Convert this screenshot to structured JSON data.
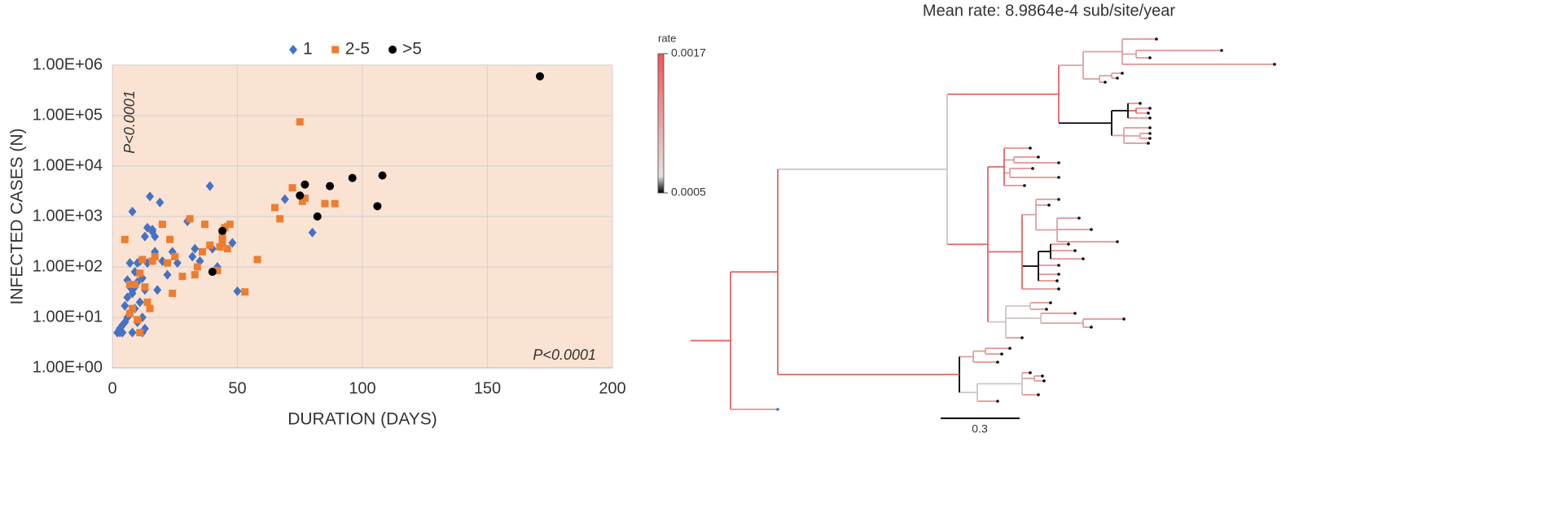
{
  "chart_data": [
    {
      "type": "scatter",
      "y_label": "INFECTED CASES (N)",
      "x_label": "DURATION (DAYS)",
      "log_y": true,
      "grid": true,
      "background": "#fbe3d3",
      "legend": "top",
      "xlim": [
        0,
        200
      ],
      "xticks": [
        0,
        50,
        100,
        150,
        200
      ],
      "ylim": [
        1,
        1000000
      ],
      "yticks": [
        {
          "value": 1,
          "label": "1.00E+00"
        },
        {
          "value": 10,
          "label": "1.00E+01"
        },
        {
          "value": 100,
          "label": "1.00E+02"
        },
        {
          "value": 1000,
          "label": "1.00E+03"
        },
        {
          "value": 10000,
          "label": "1.00E+04"
        },
        {
          "value": 100000,
          "label": "1.00E+05"
        },
        {
          "value": 1000000,
          "label": "1.00E+06"
        }
      ],
      "annotations": [
        "P<0.0001",
        "P<0.0001"
      ],
      "series": [
        {
          "name": "1",
          "color": "#4472c4",
          "marker": "diamond",
          "x": [
            2,
            3,
            4,
            5,
            3,
            4,
            6,
            5,
            6,
            7,
            7,
            8,
            8,
            9,
            9,
            10,
            10,
            11,
            12,
            12,
            13,
            13,
            14,
            15,
            16,
            17,
            18,
            19,
            20,
            22,
            24,
            26,
            30,
            32,
            33,
            35,
            39,
            40,
            42,
            45,
            48,
            50,
            69,
            80,
            8,
            6,
            7,
            11,
            12,
            14,
            16,
            17,
            10,
            9,
            13
          ],
          "values": [
            5,
            6,
            5,
            8,
            5,
            7,
            10,
            17,
            25,
            12,
            120,
            5,
            30,
            40,
            80,
            50,
            120,
            20,
            60,
            5,
            35,
            400,
            600,
            2500,
            500,
            200,
            35,
            1900,
            130,
            70,
            200,
            120,
            800,
            160,
            230,
            130,
            4000,
            230,
            100,
            600,
            300,
            33,
            2200,
            480,
            1250,
            55,
            40,
            130,
            10,
            120,
            550,
            400,
            8,
            15,
            6
          ]
        },
        {
          "name": "2-5",
          "color": "#ed7d31",
          "marker": "square",
          "x": [
            5,
            7,
            7,
            8,
            9,
            10,
            11,
            11,
            12,
            13,
            14,
            15,
            16,
            17,
            20,
            22,
            23,
            24,
            25,
            28,
            31,
            33,
            34,
            36,
            37,
            39,
            42,
            43,
            44,
            44,
            45,
            46,
            47,
            53,
            58,
            65,
            67,
            72,
            75,
            76,
            77,
            85,
            89
          ],
          "values": [
            350,
            45,
            12,
            15,
            45,
            9,
            5,
            75,
            140,
            40,
            20,
            15,
            130,
            160,
            700,
            120,
            350,
            30,
            160,
            65,
            900,
            70,
            100,
            200,
            700,
            270,
            85,
            250,
            400,
            300,
            600,
            230,
            700,
            32,
            140,
            1500,
            900,
            3700,
            75000,
            2000,
            2300,
            1800,
            1800
          ]
        },
        {
          "name": ">5",
          "color": "#000000",
          "marker": "circle",
          "x": [
            44,
            40,
            75,
            77,
            82,
            87,
            96,
            106,
            108,
            171
          ],
          "values": [
            520,
            80,
            2600,
            4300,
            1000,
            4000,
            5800,
            1600,
            6500,
            600000
          ]
        }
      ]
    },
    {
      "type": "tree",
      "title": "Mean rate: 8.9864e-4 sub/site/year",
      "colorbar": {
        "title": "rate",
        "colors": [
          "#000000",
          "#f05555"
        ],
        "ticks": [
          0.0005,
          0.0017
        ]
      },
      "scale_bar": 0.3
    }
  ]
}
